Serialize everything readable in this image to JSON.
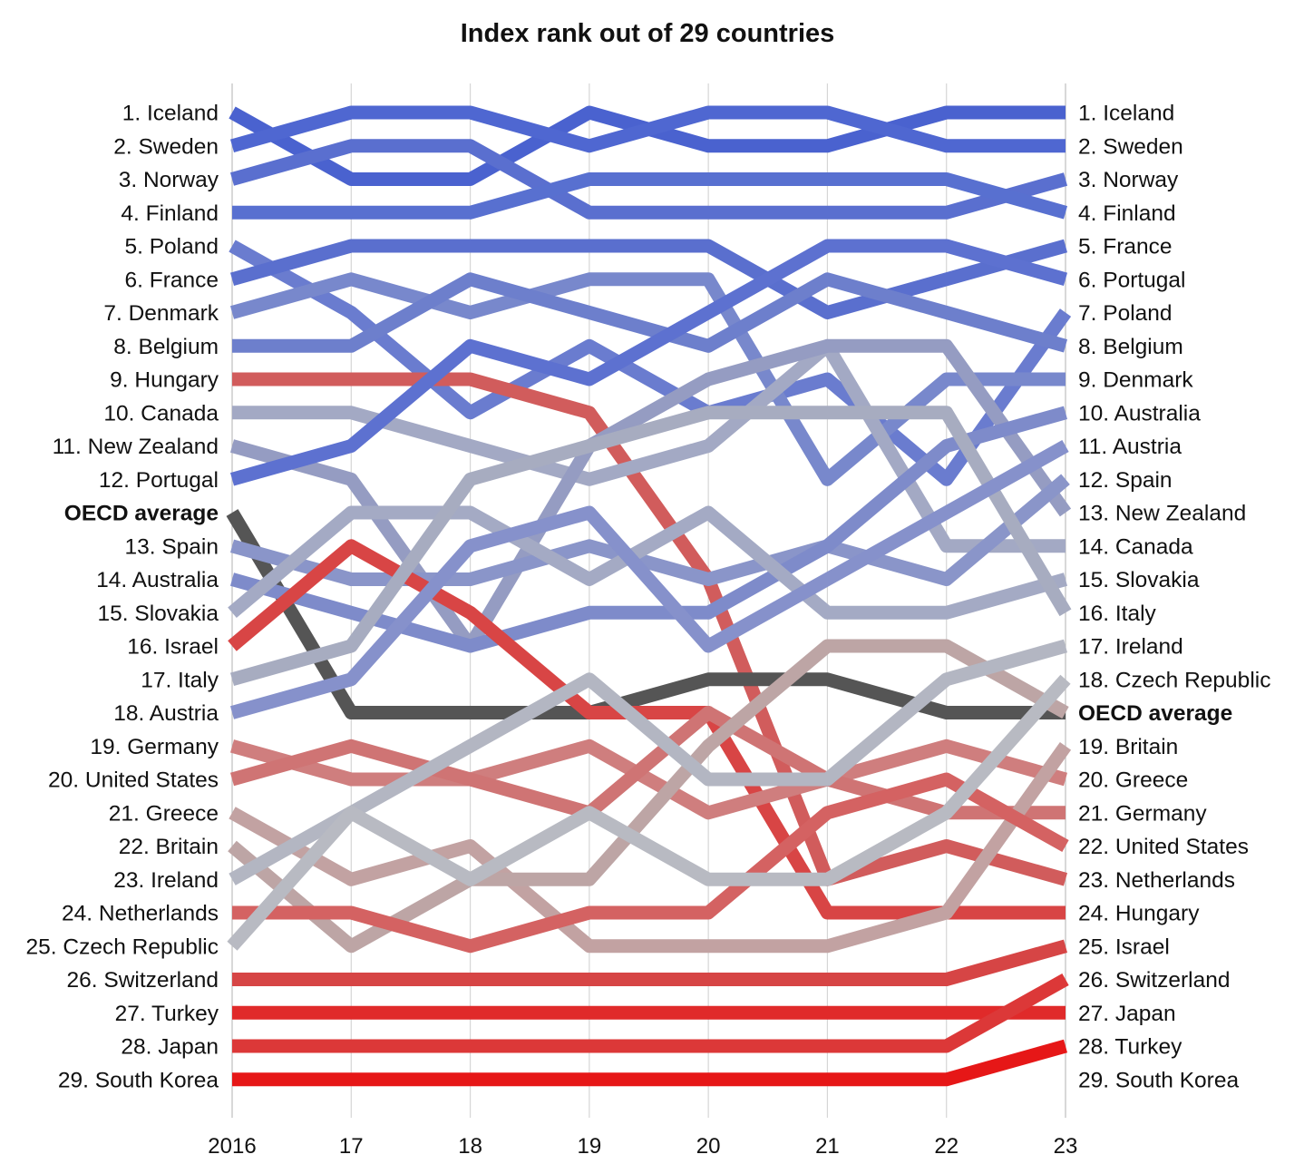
{
  "chart_data": {
    "type": "line",
    "subtype": "bump",
    "title": "Index rank out of 29 countries",
    "x": [
      "2016",
      "2017",
      "2018",
      "2019",
      "2020",
      "2021",
      "2022",
      "2023"
    ],
    "tick_labels": [
      "2016",
      "17",
      "18",
      "19",
      "20",
      "21",
      "22",
      "23"
    ],
    "y_direction": "rank, 1 at top",
    "grid": "vertical lines at each year",
    "series": [
      {
        "name": "Iceland",
        "values": [
          1,
          3,
          3,
          1,
          2,
          2,
          1,
          1
        ],
        "color": "#4a62cf"
      },
      {
        "name": "Sweden",
        "values": [
          2,
          1,
          1,
          2,
          1,
          1,
          2,
          2
        ],
        "color": "#4f67d1"
      },
      {
        "name": "Norway",
        "values": [
          3,
          2,
          2,
          4,
          4,
          4,
          4,
          3
        ],
        "color": "#5a6fcf"
      },
      {
        "name": "Finland",
        "values": [
          4,
          4,
          4,
          3,
          3,
          3,
          3,
          4
        ],
        "color": "#5870d0"
      },
      {
        "name": "Poland",
        "values": [
          5,
          7,
          10,
          8,
          10,
          9,
          12,
          7
        ],
        "color": "#6a7ccf"
      },
      {
        "name": "France",
        "values": [
          6,
          5,
          5,
          5,
          5,
          7,
          6,
          5
        ],
        "color": "#5a6fce"
      },
      {
        "name": "Denmark",
        "values": [
          7,
          6,
          7,
          6,
          6,
          12,
          9,
          9
        ],
        "color": "#7888cc"
      },
      {
        "name": "Belgium",
        "values": [
          8,
          8,
          6,
          7,
          8,
          6,
          7,
          8
        ],
        "color": "#6d7fcc"
      },
      {
        "name": "Hungary",
        "values": [
          9,
          9,
          9,
          10,
          15,
          24,
          23,
          24
        ],
        "color": "#d15c5c"
      },
      {
        "name": "Canada",
        "values": [
          10,
          10,
          11,
          12,
          11,
          8,
          14,
          14
        ],
        "color": "#a3a9c4"
      },
      {
        "name": "New Zealand",
        "values": [
          11,
          12,
          17,
          11,
          9,
          8,
          8,
          13
        ],
        "color": "#959cc2"
      },
      {
        "name": "Portugal",
        "values": [
          12,
          11,
          8,
          9,
          7,
          5,
          5,
          6
        ],
        "color": "#5d71d0"
      },
      {
        "name": "OECD average",
        "values": [
          13,
          19,
          19,
          19,
          18,
          18,
          19,
          19
        ],
        "color": "#555555"
      },
      {
        "name": "Spain",
        "values": [
          14,
          15,
          15,
          14,
          15,
          14,
          15,
          12
        ],
        "color": "#8a95c9"
      },
      {
        "name": "Australia",
        "values": [
          15,
          16,
          17,
          16,
          16,
          14,
          11,
          10
        ],
        "color": "#7e8bca"
      },
      {
        "name": "Slovakia",
        "values": [
          16,
          13,
          13,
          15,
          13,
          16,
          16,
          15
        ],
        "color": "#a4aac4"
      },
      {
        "name": "Israel",
        "values": [
          17,
          14,
          16,
          19,
          19,
          25,
          25,
          25
        ],
        "color": "#d84545"
      },
      {
        "name": "Italy",
        "values": [
          18,
          17,
          12,
          11,
          10,
          10,
          10,
          16
        ],
        "color": "#a7acc0"
      },
      {
        "name": "Austria",
        "values": [
          19,
          18,
          14,
          13,
          17,
          15,
          13,
          11
        ],
        "color": "#8691cb"
      },
      {
        "name": "Germany",
        "values": [
          20,
          21,
          21,
          20,
          22,
          21,
          20,
          21
        ],
        "color": "#cf7e7e"
      },
      {
        "name": "United States",
        "values": [
          21,
          20,
          21,
          22,
          19,
          21,
          22,
          22
        ],
        "color": "#cf7474"
      },
      {
        "name": "Greece",
        "values": [
          22,
          24,
          23,
          26,
          26,
          26,
          25,
          20
        ],
        "color": "#c2a2a2"
      },
      {
        "name": "Britain",
        "values": [
          23,
          26,
          24,
          24,
          20,
          17,
          17,
          19
        ],
        "color": "#bda5a5"
      },
      {
        "name": "Ireland",
        "values": [
          24,
          22,
          20,
          18,
          21,
          21,
          18,
          17
        ],
        "color": "#b3b6c2"
      },
      {
        "name": "Netherlands",
        "values": [
          25,
          25,
          26,
          25,
          25,
          22,
          21,
          23
        ],
        "color": "#d46262"
      },
      {
        "name": "Czech Republic",
        "values": [
          26,
          22,
          24,
          22,
          24,
          24,
          22,
          18
        ],
        "color": "#b8bac2"
      },
      {
        "name": "Switzerland",
        "values": [
          27,
          27,
          27,
          27,
          27,
          27,
          27,
          26
        ],
        "color": "#d64545"
      },
      {
        "name": "Turkey",
        "values": [
          28,
          28,
          28,
          28,
          28,
          28,
          28,
          28
        ],
        "color": "#e02a2a"
      },
      {
        "name": "Japan",
        "values": [
          29,
          29,
          29,
          29,
          29,
          29,
          29,
          27
        ],
        "color": "#dc3838"
      },
      {
        "name": "South Korea",
        "values": [
          30,
          30,
          30,
          30,
          30,
          30,
          30,
          29
        ],
        "color": "#e61717"
      }
    ],
    "left_labels": [
      "1. Iceland",
      "2. Sweden",
      "3. Norway",
      "4. Finland",
      "5. Poland",
      "6. France",
      "7. Denmark",
      "8. Belgium",
      "9. Hungary",
      "10. Canada",
      "11. New Zealand",
      "12. Portugal",
      "OECD average",
      "13. Spain",
      "14. Australia",
      "15. Slovakia",
      "16. Israel",
      "17. Italy",
      "18. Austria",
      "19. Germany",
      "20. United States",
      "21. Greece",
      "22. Britain",
      "23. Ireland",
      "24. Netherlands",
      "25. Czech Republic",
      "26. Switzerland",
      "27. Turkey",
      "28. Japan",
      "29. South Korea"
    ],
    "right_labels": [
      "1. Iceland",
      "2. Sweden",
      "3. Norway",
      "4. Finland",
      "5. France",
      "6. Portugal",
      "7. Poland",
      "8. Belgium",
      "9. Denmark",
      "10. Australia",
      "11. Austria",
      "12. Spain",
      "13. New Zealand",
      "14. Canada",
      "15. Slovakia",
      "16. Italy",
      "17. Ireland",
      "18. Czech Republic",
      "OECD average",
      "19. Britain",
      "20. Greece",
      "21. Germany",
      "22. United States",
      "23. Netherlands",
      "24. Hungary",
      "25. Israel",
      "26. Switzerland",
      "27. Japan",
      "28. Turkey",
      "29. South Korea"
    ],
    "bold_label": "OECD average"
  }
}
